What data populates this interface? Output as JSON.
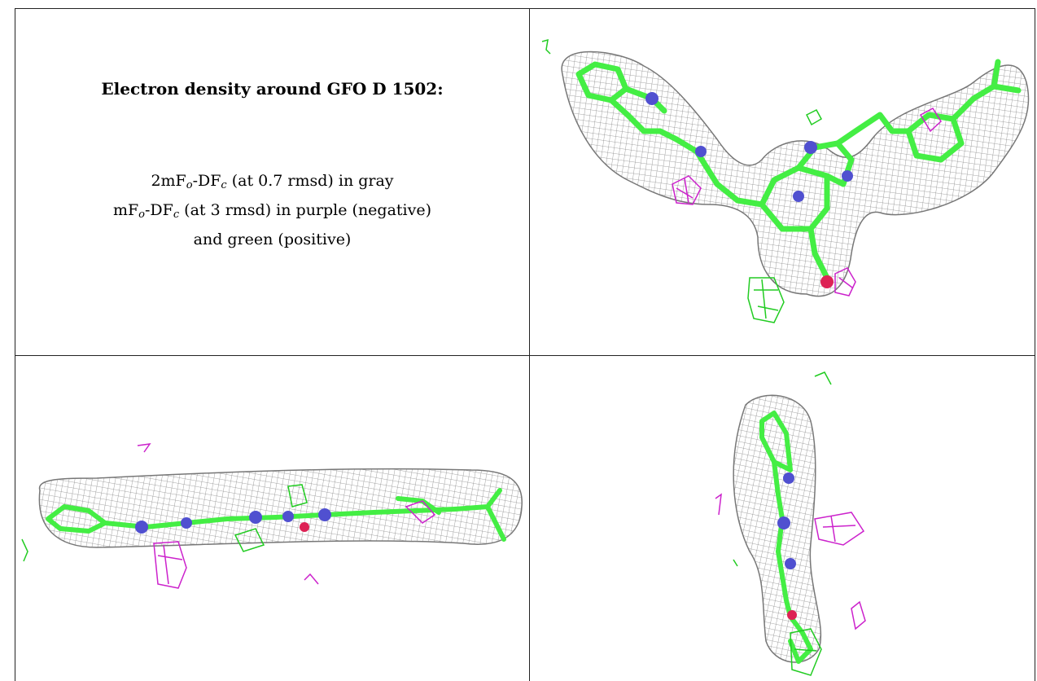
{
  "header": {
    "title": "Electron density around GFO D 1502:"
  },
  "legend": {
    "line1_prefix": "2mF",
    "line1_sub_o": "o",
    "line1_mid": "-DF",
    "line1_sub_c": "c",
    "line1_suffix": " (at 0.7 rmsd) in gray",
    "line2_prefix": "mF",
    "line2_sub_o": "o",
    "line2_mid": "-DF",
    "line2_sub_c": "c",
    "line2_suffix": " (at 3 rmsd) in purple (negative)",
    "line3": "and green (positive)"
  },
  "colors": {
    "mesh_gray": "#8a8a8a",
    "model_green": "#44ee44",
    "nitrogen_blue": "#5050d0",
    "negative_purple": "#cc22cc",
    "positive_green": "#22cc22",
    "oxygen_red": "#dd2255"
  }
}
